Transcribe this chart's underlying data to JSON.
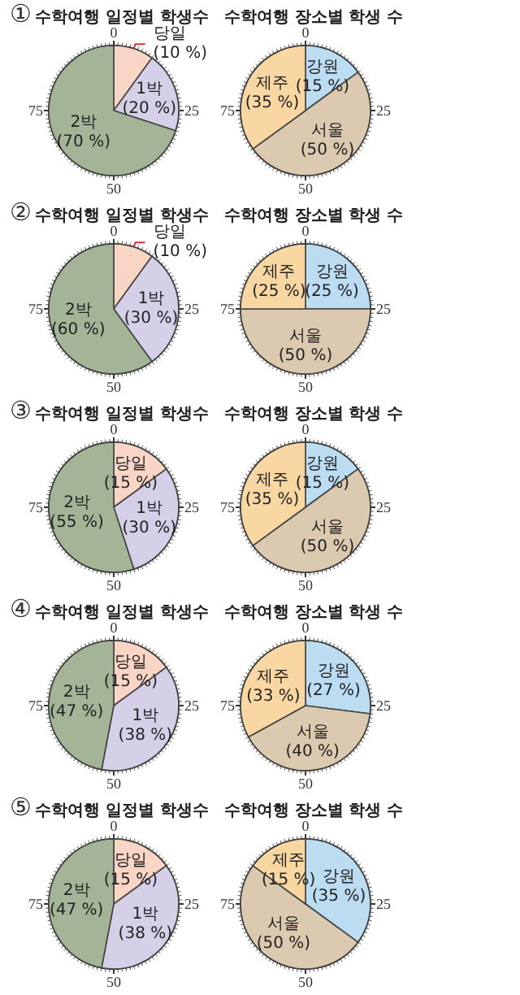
{
  "chart_data": [
    {
      "type": "pie",
      "title": "수학여행 일정별 학생수",
      "subtitle": "①",
      "annotations": [
        "0",
        "25",
        "50",
        "75"
      ],
      "categories": [
        "당일",
        "1박",
        "2박"
      ],
      "values": [
        10,
        20,
        70
      ],
      "value_labels": [
        "(10 %)",
        "(20 %)",
        "(70 %)"
      ],
      "colors": [
        "#f9d5c6",
        "#d5d0e8",
        "#a3b596"
      ]
    },
    {
      "type": "pie",
      "title": "수학여행 장소별 학생 수",
      "annotations": [
        "0",
        "25",
        "50",
        "75"
      ],
      "categories": [
        "강원",
        "서울",
        "제주"
      ],
      "values": [
        15,
        50,
        35
      ],
      "value_labels": [
        "(15 %)",
        "(50 %)",
        "(35 %)"
      ],
      "colors": [
        "#bcdcf2",
        "#dccab0",
        "#f9d7a2"
      ]
    },
    {
      "type": "pie",
      "title": "수학여행 일정별 학생수",
      "subtitle": "②",
      "annotations": [
        "0",
        "25",
        "50",
        "75"
      ],
      "categories": [
        "당일",
        "1박",
        "2박"
      ],
      "values": [
        10,
        30,
        60
      ],
      "value_labels": [
        "(10 %)",
        "(30 %)",
        "(60 %)"
      ],
      "colors": [
        "#f9d5c6",
        "#d5d0e8",
        "#a3b596"
      ]
    },
    {
      "type": "pie",
      "title": "수학여행 장소별 학생 수",
      "annotations": [
        "0",
        "25",
        "50",
        "75"
      ],
      "categories": [
        "강원",
        "서울",
        "제주"
      ],
      "values": [
        25,
        50,
        25
      ],
      "value_labels": [
        "(25 %)",
        "(50 %)",
        "(25 %)"
      ],
      "colors": [
        "#bcdcf2",
        "#dccab0",
        "#f9d7a2"
      ]
    },
    {
      "type": "pie",
      "title": "수학여행 일정별 학생수",
      "subtitle": "③",
      "annotations": [
        "0",
        "25",
        "50",
        "75"
      ],
      "categories": [
        "당일",
        "1박",
        "2박"
      ],
      "values": [
        15,
        30,
        55
      ],
      "value_labels": [
        "(15 %)",
        "(30 %)",
        "(55 %)"
      ],
      "colors": [
        "#f9d5c6",
        "#d5d0e8",
        "#a3b596"
      ]
    },
    {
      "type": "pie",
      "title": "수학여행 장소별 학생 수",
      "annotations": [
        "0",
        "25",
        "50",
        "75"
      ],
      "categories": [
        "강원",
        "서울",
        "제주"
      ],
      "values": [
        15,
        50,
        35
      ],
      "value_labels": [
        "(15 %)",
        "(50 %)",
        "(35 %)"
      ],
      "colors": [
        "#bcdcf2",
        "#dccab0",
        "#f9d7a2"
      ]
    },
    {
      "type": "pie",
      "title": "수학여행 일정별 학생수",
      "subtitle": "④",
      "annotations": [
        "0",
        "25",
        "50",
        "75"
      ],
      "categories": [
        "당일",
        "1박",
        "2박"
      ],
      "values": [
        15,
        38,
        47
      ],
      "value_labels": [
        "(15 %)",
        "(38 %)",
        "(47 %)"
      ],
      "colors": [
        "#f9d5c6",
        "#d5d0e8",
        "#a3b596"
      ]
    },
    {
      "type": "pie",
      "title": "수학여행 장소별 학생 수",
      "annotations": [
        "0",
        "25",
        "50",
        "75"
      ],
      "categories": [
        "강원",
        "서울",
        "제주"
      ],
      "values": [
        27,
        40,
        33
      ],
      "value_labels": [
        "(27 %)",
        "(40 %)",
        "(33 %)"
      ],
      "colors": [
        "#bcdcf2",
        "#dccab0",
        "#f9d7a2"
      ]
    },
    {
      "type": "pie",
      "title": "수학여행 일정별 학생수",
      "subtitle": "⑤",
      "annotations": [
        "0",
        "25",
        "50",
        "75"
      ],
      "categories": [
        "당일",
        "1박",
        "2박"
      ],
      "values": [
        15,
        38,
        47
      ],
      "value_labels": [
        "(15 %)",
        "(38 %)",
        "(47 %)"
      ],
      "colors": [
        "#f9d5c6",
        "#d5d0e8",
        "#a3b596"
      ]
    },
    {
      "type": "pie",
      "title": "수학여행 장소별 학생 수",
      "annotations": [
        "0",
        "25",
        "50",
        "75"
      ],
      "categories": [
        "강원",
        "서울",
        "제주"
      ],
      "values": [
        35,
        50,
        15
      ],
      "value_labels": [
        "(35 %)",
        "(50 %)",
        "(15 %)"
      ],
      "colors": [
        "#bcdcf2",
        "#dccab0",
        "#f9d7a2"
      ]
    }
  ]
}
